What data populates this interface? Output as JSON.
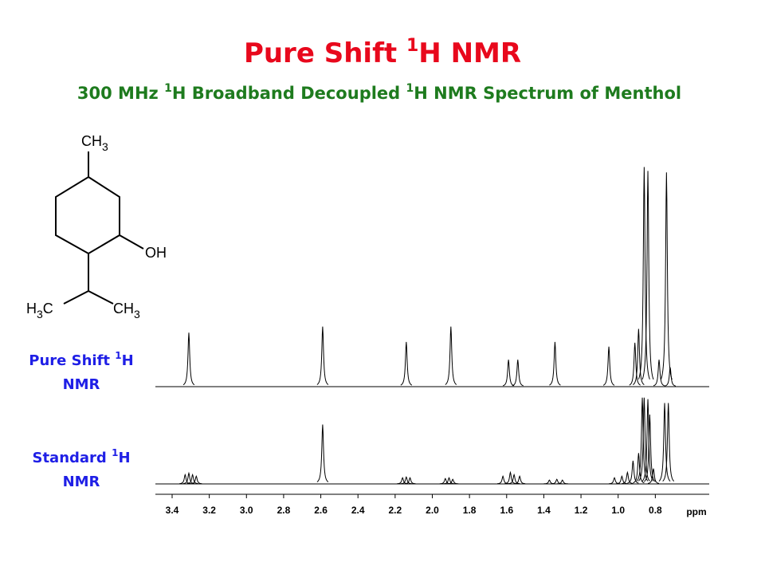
{
  "chart_data": {
    "type": "spectrum",
    "title": [
      "Pure Shift ",
      "1",
      "H NMR"
    ],
    "subtitle": [
      "300 MHz ",
      "1",
      "H Broadband Decoupled ",
      "1",
      "H NMR Spectrum of Menthol"
    ],
    "molecule_labels": [
      [
        "CH",
        "3"
      ],
      [
        "OH"
      ],
      [
        "H",
        "3",
        "C"
      ],
      [
        "CH",
        "3"
      ]
    ],
    "x_label": "ppm",
    "xlim": [
      3.49,
      0.51
    ],
    "ylim": [
      0,
      300
    ],
    "xticks": [
      3.4,
      3.2,
      {
        "value": 3,
        "label": "3.0"
      },
      2.8,
      2.6,
      2.4,
      2.2,
      {
        "value": 2,
        "label": "2.0"
      },
      1.8,
      1.6,
      1.4,
      1.2,
      {
        "value": 1,
        "label": "1.0"
      },
      0.8
    ],
    "series": [
      {
        "name": [
          "Pure Shift ",
          "1",
          "H",
          "NMR"
        ],
        "color": "#000000",
        "x": [
          3.31,
          2.59,
          2.14,
          1.9,
          1.59,
          1.54,
          1.34,
          1.05,
          0.91,
          0.89,
          0.86,
          0.84,
          0.78,
          0.74,
          0.72
        ],
        "values": [
          70,
          78,
          58,
          78,
          35,
          35,
          58,
          52,
          57,
          75,
          285,
          280,
          35,
          278,
          25
        ]
      },
      {
        "name": [
          "Standard ",
          "1",
          "H",
          "NMR"
        ],
        "color": "#000000",
        "x": [
          3.33,
          3.31,
          3.29,
          3.27,
          2.59,
          2.16,
          2.14,
          2.12,
          1.93,
          1.91,
          1.89,
          1.62,
          1.58,
          1.56,
          1.53,
          1.37,
          1.33,
          1.3,
          1.02,
          0.98,
          0.95,
          0.92,
          0.89,
          0.87,
          0.86,
          0.84,
          0.83,
          0.81,
          0.75,
          0.73
        ],
        "values": [
          12,
          14,
          12,
          10,
          77,
          8,
          9,
          8,
          7,
          8,
          6,
          10,
          15,
          12,
          10,
          5,
          6,
          5,
          8,
          10,
          15,
          30,
          40,
          112,
          112,
          110,
          90,
          20,
          105,
          105
        ]
      }
    ]
  }
}
